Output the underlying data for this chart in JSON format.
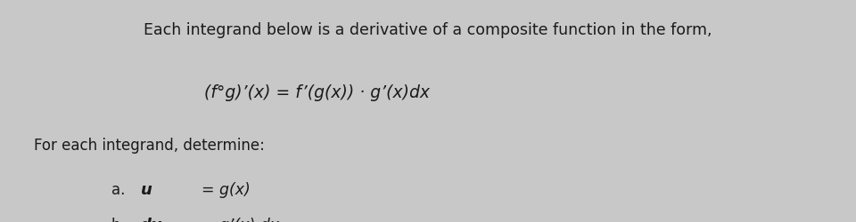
{
  "background_color": "#c8c8c8",
  "line1": "Each integrand below is a derivative of a composite function in the form,",
  "line2": "(f°g)’(x) = f’(g(x)) · g’(x)dx",
  "line3": "For each integrand, determine:",
  "text_color": "#1a1a1a",
  "figsize": [
    9.6,
    2.5
  ],
  "dpi": 100
}
